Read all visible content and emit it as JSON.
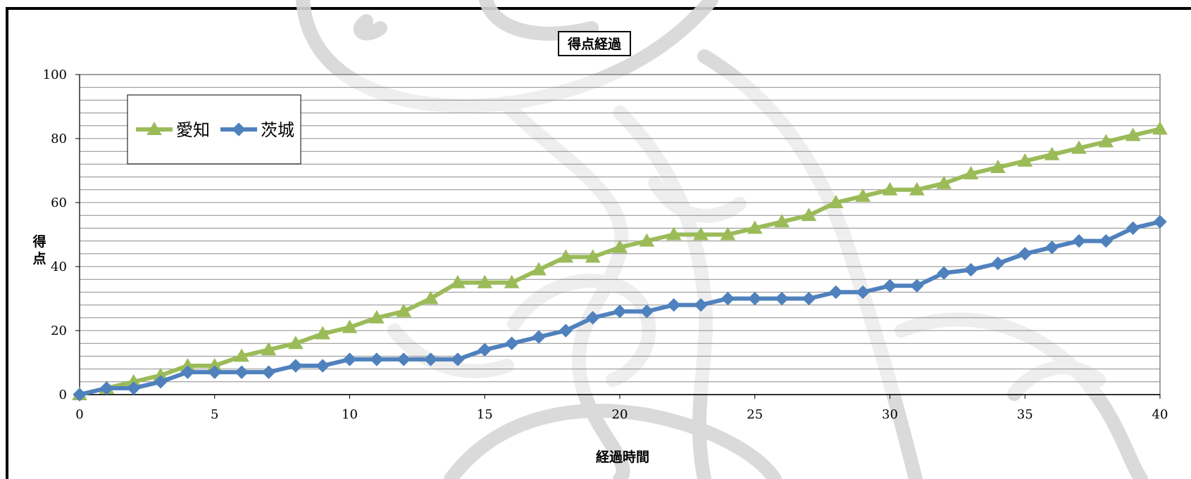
{
  "chart_data": {
    "type": "line",
    "title": "得点経過",
    "xlabel": "経過時間",
    "ylabel": "得点",
    "xlim": [
      0,
      40
    ],
    "ylim": [
      0,
      100
    ],
    "x_ticks": [
      0,
      5,
      10,
      15,
      20,
      25,
      30,
      35,
      40
    ],
    "y_ticks": [
      0,
      20,
      40,
      60,
      80,
      100
    ],
    "minor_grid_step": 4,
    "grid": true,
    "legend_position": "top-left",
    "x": [
      0,
      1,
      2,
      3,
      4,
      5,
      6,
      7,
      8,
      9,
      10,
      11,
      12,
      13,
      14,
      15,
      16,
      17,
      18,
      19,
      20,
      21,
      22,
      23,
      24,
      25,
      26,
      27,
      28,
      29,
      30,
      31,
      32,
      33,
      34,
      35,
      36,
      37,
      38,
      39,
      40
    ],
    "series": [
      {
        "name": "愛知",
        "color": "#9bbb59",
        "marker": "triangle",
        "values": [
          0,
          2,
          4,
          6,
          9,
          9,
          12,
          14,
          16,
          19,
          21,
          24,
          26,
          30,
          35,
          35,
          35,
          39,
          43,
          43,
          46,
          48,
          50,
          50,
          50,
          52,
          54,
          56,
          60,
          62,
          64,
          64,
          66,
          69,
          71,
          73,
          75,
          77,
          79,
          81,
          83
        ]
      },
      {
        "name": "茨城",
        "color": "#4f81bd",
        "marker": "diamond",
        "values": [
          0,
          2,
          2,
          4,
          7,
          7,
          7,
          7,
          9,
          9,
          11,
          11,
          11,
          11,
          11,
          14,
          16,
          18,
          20,
          24,
          26,
          26,
          28,
          28,
          30,
          30,
          30,
          30,
          32,
          32,
          34,
          34,
          38,
          39,
          41,
          44,
          46,
          48,
          48,
          52,
          54
        ]
      }
    ]
  }
}
